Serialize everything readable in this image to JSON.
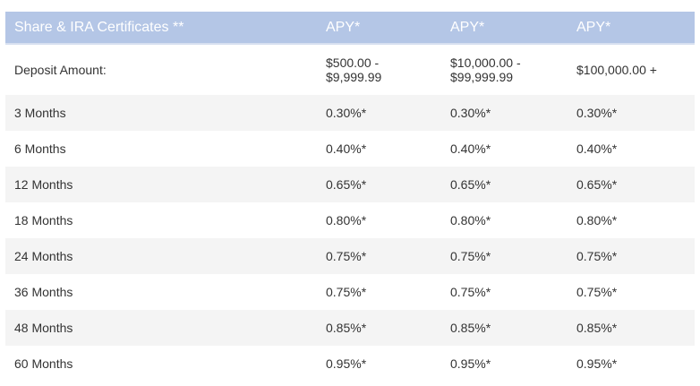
{
  "table": {
    "header": {
      "title": "Share & IRA Certificates **",
      "col1": "APY*",
      "col2": "APY*",
      "col3": "APY*"
    },
    "deposit": {
      "label": "Deposit Amount:",
      "tier1": {
        "line1": "$500.00 -",
        "line2": "$9,999.99"
      },
      "tier2": {
        "line1": "$10,000.00 -",
        "line2": "$99,999.99"
      },
      "tier3": "$100,000.00 +"
    },
    "rows": [
      {
        "term": "3 Months",
        "tier1": "0.30%*",
        "tier2": "0.30%*",
        "tier3": "0.30%*"
      },
      {
        "term": "6 Months",
        "tier1": "0.40%*",
        "tier2": "0.40%*",
        "tier3": "0.40%*"
      },
      {
        "term": "12 Months",
        "tier1": "0.65%*",
        "tier2": "0.65%*",
        "tier3": "0.65%*"
      },
      {
        "term": "18 Months",
        "tier1": "0.80%*",
        "tier2": "0.80%*",
        "tier3": "0.80%*"
      },
      {
        "term": "24 Months",
        "tier1": "0.75%*",
        "tier2": "0.75%*",
        "tier3": "0.75%*"
      },
      {
        "term": "36 Months",
        "tier1": "0.75%*",
        "tier2": "0.75%*",
        "tier3": "0.75%*"
      },
      {
        "term": "48 Months",
        "tier1": "0.85%*",
        "tier2": "0.85%*",
        "tier3": "0.85%*"
      },
      {
        "term": "60 Months",
        "tier1": "0.95%*",
        "tier2": "0.95%*",
        "tier3": "0.95%*"
      }
    ]
  }
}
